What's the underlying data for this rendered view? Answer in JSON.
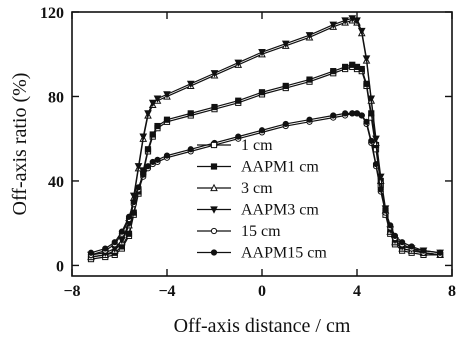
{
  "chart_data": {
    "type": "line",
    "title": "",
    "xlabel": "Off-axis distance / cm",
    "ylabel": "Off-axis ratio (%)",
    "xlim": [
      -8,
      8
    ],
    "ylim": [
      -5,
      120
    ],
    "xticks": [
      -8,
      -4,
      0,
      4,
      8
    ],
    "xtick_labels": [
      "−8",
      "−4",
      "0",
      "4",
      "8"
    ],
    "yticks": [
      0,
      40,
      80,
      120
    ],
    "ytick_labels": [
      "0",
      "40",
      "80",
      "120"
    ],
    "grid": false,
    "legend_position": "center-right",
    "series": [
      {
        "name": "1 cm",
        "marker": "open-square",
        "x": [
          -7.2,
          -6.6,
          -6.2,
          -5.9,
          -5.6,
          -5.4,
          -5.2,
          -5.0,
          -4.8,
          -4.6,
          -4.4,
          -4.0,
          -3.0,
          -2.0,
          -1.0,
          0,
          1.0,
          2.0,
          3.0,
          3.5,
          3.8,
          4.0,
          4.2,
          4.4,
          4.6,
          4.8,
          5.0,
          5.2,
          5.4,
          5.6,
          5.9,
          6.3,
          6.8,
          7.5
        ],
        "y": [
          3,
          4,
          5,
          8,
          14,
          24,
          34,
          44,
          54,
          61,
          65,
          68,
          71,
          74,
          77,
          81,
          84,
          87,
          91,
          93,
          94,
          93,
          92,
          85,
          70,
          55,
          38,
          24,
          15,
          10,
          7,
          6,
          5,
          5
        ]
      },
      {
        "name": "AAPM1 cm",
        "marker": "filled-square",
        "x": [
          -7.2,
          -6.6,
          -6.2,
          -5.9,
          -5.6,
          -5.4,
          -5.2,
          -5.0,
          -4.8,
          -4.6,
          -4.4,
          -4.0,
          -3.0,
          -2.0,
          -1.0,
          0,
          1.0,
          2.0,
          3.0,
          3.5,
          3.8,
          4.0,
          4.2,
          4.4,
          4.6,
          4.8,
          5.0,
          5.2,
          5.4,
          5.6,
          5.9,
          6.3,
          6.8,
          7.5
        ],
        "y": [
          4,
          5,
          6,
          9,
          15,
          25,
          35,
          45,
          55,
          62,
          66,
          69,
          72,
          75,
          78,
          82,
          85,
          88,
          92,
          94,
          95,
          94,
          93,
          86,
          72,
          57,
          40,
          26,
          16,
          11,
          8,
          7,
          6,
          5
        ]
      },
      {
        "name": "3 cm",
        "marker": "open-triangle-up",
        "x": [
          -7.2,
          -6.6,
          -6.2,
          -5.9,
          -5.6,
          -5.4,
          -5.2,
          -5.0,
          -4.8,
          -4.6,
          -4.4,
          -4.0,
          -3.0,
          -2.0,
          -1.0,
          0,
          1.0,
          2.0,
          3.0,
          3.5,
          3.8,
          4.0,
          4.2,
          4.4,
          4.6,
          4.8,
          5.0,
          5.2,
          5.4,
          5.6,
          5.9,
          6.3,
          6.8,
          7.5
        ],
        "y": [
          4,
          5,
          7,
          11,
          19,
          32,
          46,
          60,
          71,
          76,
          78,
          80,
          85,
          90,
          95,
          100,
          104,
          108,
          113,
          115,
          116,
          115,
          110,
          97,
          78,
          58,
          40,
          26,
          16,
          11,
          8,
          7,
          6,
          5
        ]
      },
      {
        "name": "AAPM3 cm",
        "marker": "filled-triangle-down",
        "x": [
          -7.2,
          -6.6,
          -6.2,
          -5.9,
          -5.6,
          -5.4,
          -5.2,
          -5.0,
          -4.8,
          -4.6,
          -4.4,
          -4.0,
          -3.0,
          -2.0,
          -1.0,
          0,
          1.0,
          2.0,
          3.0,
          3.5,
          3.8,
          4.0,
          4.2,
          4.4,
          4.6,
          4.8,
          5.0,
          5.2,
          5.4,
          5.6,
          5.9,
          6.3,
          6.8,
          7.5
        ],
        "y": [
          5,
          6,
          8,
          12,
          20,
          33,
          47,
          61,
          72,
          77,
          79,
          81,
          86,
          91,
          96,
          101,
          105,
          109,
          114,
          116,
          117,
          116,
          111,
          98,
          79,
          60,
          42,
          27,
          17,
          12,
          9,
          8,
          7,
          6
        ]
      },
      {
        "name": "15 cm",
        "marker": "open-circle",
        "x": [
          -7.2,
          -6.6,
          -6.2,
          -5.9,
          -5.6,
          -5.4,
          -5.2,
          -5.0,
          -4.8,
          -4.6,
          -4.4,
          -4.0,
          -3.0,
          -2.0,
          -1.0,
          0,
          1.0,
          2.0,
          3.0,
          3.5,
          3.8,
          4.0,
          4.2,
          4.4,
          4.6,
          4.8,
          5.0,
          5.2,
          5.4,
          5.6,
          5.9,
          6.3,
          6.8,
          7.5
        ],
        "y": [
          5,
          7,
          10,
          15,
          22,
          29,
          36,
          42,
          46,
          48,
          49,
          51,
          54,
          57,
          60,
          63,
          66,
          68,
          70,
          71,
          72,
          72,
          71,
          67,
          58,
          47,
          35,
          25,
          18,
          13,
          10,
          8,
          6,
          5
        ]
      },
      {
        "name": "AAPM15 cm",
        "marker": "filled-circle",
        "x": [
          -7.2,
          -6.6,
          -6.2,
          -5.9,
          -5.6,
          -5.4,
          -5.2,
          -5.0,
          -4.8,
          -4.6,
          -4.4,
          -4.0,
          -3.0,
          -2.0,
          -1.0,
          0,
          1.0,
          2.0,
          3.0,
          3.5,
          3.8,
          4.0,
          4.2,
          4.4,
          4.6,
          4.8,
          5.0,
          5.2,
          5.4,
          5.6,
          5.9,
          6.3,
          6.8,
          7.5
        ],
        "y": [
          6,
          8,
          11,
          16,
          23,
          30,
          37,
          43,
          47,
          49,
          50,
          52,
          55,
          58,
          61,
          64,
          67,
          69,
          71,
          72,
          72,
          72,
          71,
          68,
          59,
          48,
          36,
          26,
          19,
          14,
          11,
          9,
          7,
          6
        ]
      }
    ]
  }
}
